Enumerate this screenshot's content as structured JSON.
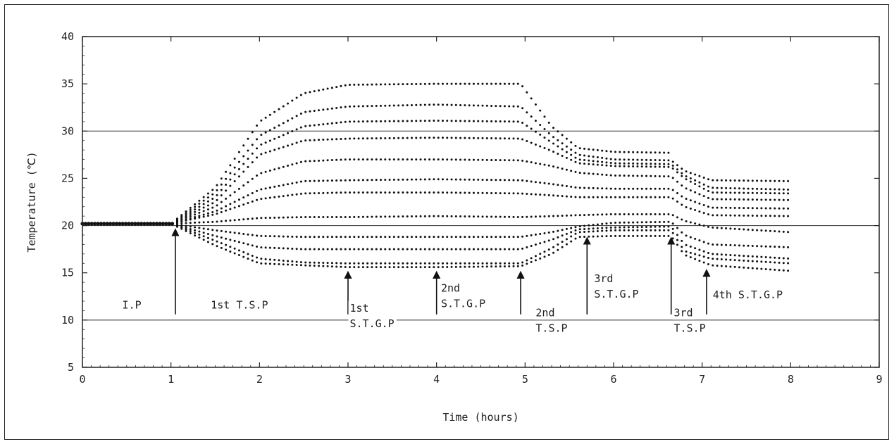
{
  "chart_data": {
    "type": "scatter",
    "title": "",
    "xlabel": "Time  (hours)",
    "ylabel": "Temperature (℃)",
    "xlim": [
      0,
      9
    ],
    "ylim": [
      5,
      40
    ],
    "x_ticks": [
      "0",
      "1",
      "2",
      "3",
      "4",
      "5",
      "6",
      "7",
      "8",
      "9"
    ],
    "y_ticks": [
      "5",
      "10",
      "15",
      "20",
      "25",
      "30",
      "35",
      "40"
    ],
    "grid": false,
    "reference_lines_y": [
      10,
      20,
      30
    ],
    "initial_temperature": 20.2,
    "series": [
      {
        "values": [
          [
            1.0,
            20.2
          ],
          [
            1.5,
            24.0
          ],
          [
            2.0,
            31.0
          ],
          [
            2.5,
            34.0
          ],
          [
            3.0,
            34.9
          ],
          [
            4.0,
            35.0
          ],
          [
            4.95,
            35.0
          ],
          [
            5.3,
            30.5
          ],
          [
            5.6,
            28.2
          ],
          [
            6.0,
            27.8
          ],
          [
            6.65,
            27.7
          ]
        ]
      },
      {
        "values": [
          [
            1.0,
            20.2
          ],
          [
            1.5,
            23.5
          ],
          [
            2.0,
            29.5
          ],
          [
            2.5,
            32.0
          ],
          [
            3.0,
            32.6
          ],
          [
            4.0,
            32.8
          ],
          [
            4.95,
            32.6
          ],
          [
            5.3,
            29.5
          ],
          [
            5.6,
            27.5
          ],
          [
            6.0,
            27.0
          ],
          [
            6.65,
            26.9
          ],
          [
            6.8,
            25.8
          ],
          [
            7.1,
            24.8
          ],
          [
            8.0,
            24.7
          ]
        ]
      },
      {
        "values": [
          [
            1.0,
            20.2
          ],
          [
            1.5,
            23.0
          ],
          [
            2.0,
            28.5
          ],
          [
            2.5,
            30.5
          ],
          [
            3.0,
            31.0
          ],
          [
            4.0,
            31.1
          ],
          [
            4.95,
            31.0
          ],
          [
            5.3,
            28.8
          ],
          [
            5.6,
            27.0
          ],
          [
            6.0,
            26.6
          ],
          [
            6.65,
            26.5
          ],
          [
            6.8,
            25.3
          ],
          [
            7.1,
            24.0
          ],
          [
            8.0,
            23.8
          ]
        ]
      },
      {
        "values": [
          [
            1.0,
            20.2
          ],
          [
            1.5,
            22.5
          ],
          [
            2.0,
            27.5
          ],
          [
            2.5,
            29.0
          ],
          [
            3.0,
            29.2
          ],
          [
            4.0,
            29.3
          ],
          [
            4.95,
            29.2
          ],
          [
            5.3,
            27.9
          ],
          [
            5.6,
            26.6
          ],
          [
            6.0,
            26.3
          ],
          [
            6.65,
            26.2
          ],
          [
            6.8,
            25.0
          ],
          [
            7.1,
            23.5
          ],
          [
            8.0,
            23.4
          ]
        ]
      },
      {
        "values": [
          [
            1.0,
            20.2
          ],
          [
            1.5,
            22.0
          ],
          [
            2.0,
            25.5
          ],
          [
            2.5,
            26.8
          ],
          [
            3.0,
            27.0
          ],
          [
            4.0,
            27.0
          ],
          [
            4.95,
            26.9
          ],
          [
            5.3,
            26.3
          ],
          [
            5.6,
            25.6
          ],
          [
            6.0,
            25.3
          ],
          [
            6.65,
            25.2
          ],
          [
            6.8,
            24.0
          ],
          [
            7.1,
            22.8
          ],
          [
            8.0,
            22.7
          ]
        ]
      },
      {
        "values": [
          [
            1.0,
            20.2
          ],
          [
            1.5,
            21.5
          ],
          [
            2.0,
            23.8
          ],
          [
            2.5,
            24.7
          ],
          [
            3.0,
            24.8
          ],
          [
            4.0,
            24.9
          ],
          [
            4.95,
            24.8
          ],
          [
            5.3,
            24.4
          ],
          [
            5.6,
            24.0
          ],
          [
            6.0,
            23.9
          ],
          [
            6.65,
            23.9
          ],
          [
            6.8,
            22.9
          ],
          [
            7.1,
            21.9
          ],
          [
            8.0,
            21.8
          ]
        ]
      },
      {
        "values": [
          [
            1.0,
            20.2
          ],
          [
            1.5,
            21.2
          ],
          [
            2.0,
            22.8
          ],
          [
            2.5,
            23.4
          ],
          [
            3.0,
            23.5
          ],
          [
            4.0,
            23.5
          ],
          [
            4.95,
            23.4
          ],
          [
            5.3,
            23.2
          ],
          [
            5.6,
            23.0
          ],
          [
            6.0,
            23.0
          ],
          [
            6.65,
            23.0
          ],
          [
            6.8,
            22.0
          ],
          [
            7.1,
            21.1
          ],
          [
            8.0,
            21.0
          ]
        ]
      },
      {
        "values": [
          [
            1.0,
            20.2
          ],
          [
            1.5,
            20.4
          ],
          [
            2.0,
            20.8
          ],
          [
            2.5,
            20.9
          ],
          [
            3.0,
            20.9
          ],
          [
            4.0,
            21.0
          ],
          [
            4.95,
            20.9
          ],
          [
            5.3,
            21.0
          ],
          [
            5.6,
            21.1
          ],
          [
            6.0,
            21.2
          ],
          [
            6.65,
            21.2
          ],
          [
            6.8,
            20.5
          ],
          [
            7.1,
            19.8
          ],
          [
            8.0,
            19.3
          ]
        ]
      },
      {
        "values": [
          [
            1.0,
            20.2
          ],
          [
            1.5,
            19.5
          ],
          [
            2.0,
            18.9
          ],
          [
            2.5,
            18.8
          ],
          [
            3.0,
            18.8
          ],
          [
            4.0,
            18.8
          ],
          [
            4.95,
            18.8
          ],
          [
            5.3,
            19.3
          ],
          [
            5.6,
            19.9
          ],
          [
            6.0,
            20.3
          ],
          [
            6.65,
            20.4
          ],
          [
            6.8,
            19.0
          ],
          [
            7.1,
            18.0
          ],
          [
            8.0,
            17.7
          ]
        ]
      },
      {
        "values": [
          [
            1.0,
            20.2
          ],
          [
            1.5,
            18.9
          ],
          [
            2.0,
            17.7
          ],
          [
            2.5,
            17.5
          ],
          [
            3.0,
            17.5
          ],
          [
            4.0,
            17.5
          ],
          [
            4.95,
            17.5
          ],
          [
            5.3,
            18.5
          ],
          [
            5.6,
            19.6
          ],
          [
            6.0,
            19.8
          ],
          [
            6.65,
            19.9
          ],
          [
            6.8,
            18.0
          ],
          [
            7.1,
            17.0
          ],
          [
            8.0,
            16.5
          ]
        ]
      },
      {
        "values": [
          [
            1.0,
            20.2
          ],
          [
            1.5,
            18.4
          ],
          [
            2.0,
            16.5
          ],
          [
            2.5,
            16.1
          ],
          [
            3.0,
            16.0
          ],
          [
            4.0,
            16.0
          ],
          [
            4.95,
            16.0
          ],
          [
            5.3,
            17.6
          ],
          [
            5.6,
            19.3
          ],
          [
            6.0,
            19.5
          ],
          [
            6.65,
            19.5
          ],
          [
            6.8,
            17.3
          ],
          [
            7.1,
            16.5
          ],
          [
            8.0,
            16.0
          ]
        ]
      },
      {
        "values": [
          [
            1.0,
            20.2
          ],
          [
            1.5,
            17.9
          ],
          [
            2.0,
            16.0
          ],
          [
            2.5,
            15.8
          ],
          [
            3.0,
            15.6
          ],
          [
            4.0,
            15.6
          ],
          [
            4.95,
            15.7
          ],
          [
            5.3,
            17.0
          ],
          [
            5.6,
            18.8
          ],
          [
            6.0,
            18.9
          ],
          [
            6.65,
            18.9
          ],
          [
            6.8,
            16.9
          ],
          [
            7.1,
            15.8
          ],
          [
            8.0,
            15.2
          ]
        ]
      }
    ],
    "annotations": [
      {
        "arrow_x": 1.05,
        "arrow_from_y": 10.6,
        "arrow_to_y": 19.3,
        "lines": [
          "I.P"
        ],
        "label_x": 0.45,
        "label_y": 11.2
      },
      {
        "arrow_x": 1.05,
        "lines": [
          "1st T.S.P"
        ],
        "label_x": 1.45,
        "label_y": 11.2
      },
      {
        "arrow_x": 3.0,
        "arrow_from_y": 10.6,
        "arrow_to_y": 14.8,
        "lines": [
          "1st",
          "S.T.G.P"
        ],
        "label_x": 3.02,
        "label_y": 10.9
      },
      {
        "arrow_x": 4.0,
        "arrow_from_y": 10.6,
        "arrow_to_y": 14.8,
        "lines": [
          "2nd",
          "S.T.G.P"
        ],
        "label_x": 4.05,
        "label_y": 13.0
      },
      {
        "arrow_x": 4.95,
        "arrow_from_y": 10.6,
        "arrow_to_y": 14.8,
        "lines": [
          "2nd",
          "T.S.P"
        ],
        "label_x": 5.12,
        "label_y": 10.4
      },
      {
        "arrow_x": 5.7,
        "arrow_from_y": 10.6,
        "arrow_to_y": 18.4,
        "lines": [
          "3rd",
          "S.T.G.P"
        ],
        "label_x": 5.78,
        "label_y": 14.0
      },
      {
        "arrow_x": 6.65,
        "arrow_from_y": 10.6,
        "arrow_to_y": 18.4,
        "lines": [
          "3rd",
          "T.S.P"
        ],
        "label_x": 6.68,
        "label_y": 10.4
      },
      {
        "arrow_x": 7.05,
        "arrow_from_y": 10.6,
        "arrow_to_y": 15.0,
        "lines": [
          "4th S.T.G.P"
        ],
        "label_x": 7.12,
        "label_y": 12.3
      }
    ]
  }
}
